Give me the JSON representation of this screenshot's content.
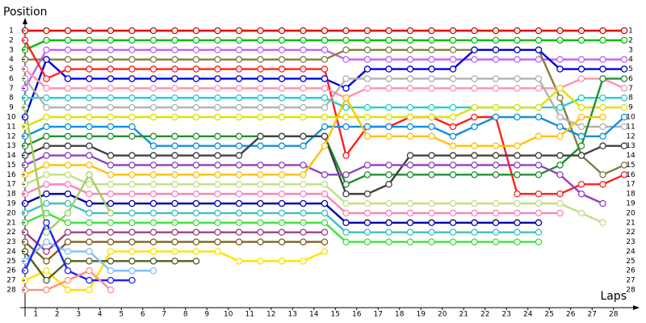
{
  "chart_data": {
    "type": "lap",
    "y_label": "Position",
    "x_label": "Laps",
    "x": [
      0,
      1,
      2,
      3,
      4,
      5,
      6,
      7,
      8,
      9,
      10,
      11,
      12,
      13,
      14,
      15,
      16,
      17,
      18,
      19,
      20,
      21,
      22,
      23,
      24,
      25,
      26,
      27,
      28
    ],
    "xlim": [
      0,
      28.6
    ],
    "xticks": [
      {
        "value": 0.5,
        "label": "1"
      },
      {
        "value": 1.5,
        "label": "2"
      },
      {
        "value": 2.5,
        "label": "3"
      },
      {
        "value": 3.5,
        "label": "4"
      },
      {
        "value": 4.5,
        "label": "5"
      },
      {
        "value": 5.5,
        "label": "6"
      },
      {
        "value": 6.5,
        "label": "7"
      },
      {
        "value": 7.5,
        "label": "8"
      },
      {
        "value": 8.5,
        "label": "9"
      },
      {
        "value": 9.5,
        "label": "10"
      },
      {
        "value": 10.5,
        "label": "11"
      },
      {
        "value": 11.5,
        "label": "12"
      },
      {
        "value": 12.5,
        "label": "13"
      },
      {
        "value": 13.5,
        "label": "14"
      },
      {
        "value": 14.5,
        "label": "15"
      },
      {
        "value": 15.5,
        "label": "16"
      },
      {
        "value": 16.5,
        "label": "17"
      },
      {
        "value": 17.5,
        "label": "18"
      },
      {
        "value": 18.5,
        "label": "19"
      },
      {
        "value": 19.5,
        "label": "20"
      },
      {
        "value": 20.5,
        "label": "21"
      },
      {
        "value": 21.5,
        "label": "22"
      },
      {
        "value": 22.5,
        "label": "23"
      },
      {
        "value": 23.5,
        "label": "24"
      },
      {
        "value": 24.5,
        "label": "25"
      },
      {
        "value": 25.5,
        "label": "26"
      },
      {
        "value": 26.5,
        "label": "27"
      },
      {
        "value": 27.5,
        "label": "28"
      }
    ],
    "ylim": [
      30,
      0
    ],
    "yticks": [
      1,
      2,
      3,
      4,
      5,
      6,
      7,
      8,
      9,
      10,
      11,
      12,
      13,
      14,
      15,
      16,
      17,
      18,
      19,
      20,
      21,
      22,
      23,
      24,
      25,
      26,
      27,
      28
    ],
    "series": [
      {
        "color": "#e00000",
        "values": [
          1,
          1,
          1,
          1,
          1,
          1,
          1,
          1,
          1,
          1,
          1,
          1,
          1,
          1,
          1,
          1,
          1,
          1,
          1,
          1,
          1,
          1,
          1,
          1,
          1,
          1,
          1,
          1,
          1
        ]
      },
      {
        "color": "#00c000",
        "values": [
          3,
          2,
          2,
          2,
          2,
          2,
          2,
          2,
          2,
          2,
          2,
          2,
          2,
          2,
          2,
          2,
          2,
          2,
          2,
          2,
          2,
          2,
          2,
          2,
          2,
          2,
          2,
          2,
          2
        ]
      },
      {
        "color": "#c060ff",
        "values": [
          7,
          3,
          3,
          3,
          3,
          3,
          3,
          3,
          3,
          3,
          3,
          3,
          3,
          3,
          3,
          4,
          4,
          4,
          4,
          4,
          4,
          4,
          4,
          4,
          4,
          4,
          4,
          4,
          4
        ]
      },
      {
        "color": "#808040",
        "values": [
          4,
          4,
          4,
          4,
          4,
          4,
          4,
          4,
          4,
          4,
          4,
          4,
          4,
          4,
          4,
          3,
          3,
          3,
          3,
          3,
          3,
          3,
          3,
          3,
          3,
          8,
          14,
          16,
          15
        ]
      },
      {
        "color": "#0000e0",
        "values": [
          10,
          4,
          6,
          6,
          6,
          6,
          6,
          6,
          6,
          6,
          6,
          6,
          6,
          6,
          6,
          7,
          5,
          5,
          5,
          5,
          5,
          3,
          3,
          3,
          3,
          5,
          5,
          5,
          5
        ]
      },
      {
        "color": "#ff2020",
        "values": [
          2,
          6,
          5,
          5,
          5,
          5,
          5,
          5,
          5,
          5,
          5,
          5,
          5,
          5,
          5,
          14,
          11,
          11,
          10,
          10,
          11,
          10,
          10,
          18,
          18,
          18,
          17,
          17,
          16
        ]
      },
      {
        "color": "#ff90b0",
        "values": [
          5,
          7,
          7,
          7,
          7,
          7,
          7,
          7,
          7,
          7,
          7,
          7,
          7,
          7,
          7,
          8,
          7,
          7,
          7,
          7,
          7,
          7,
          7,
          7,
          7,
          7,
          6,
          6,
          7
        ]
      },
      {
        "color": "#20d0d0",
        "values": [
          8,
          8,
          8,
          8,
          8,
          8,
          8,
          8,
          8,
          8,
          8,
          8,
          8,
          8,
          8,
          9,
          9,
          9,
          9,
          9,
          9,
          9,
          9,
          9,
          9,
          9,
          8,
          8,
          8
        ]
      },
      {
        "color": "#b0b0b0",
        "values": [
          6,
          9,
          9,
          9,
          9,
          9,
          9,
          9,
          9,
          9,
          9,
          9,
          9,
          9,
          9,
          6,
          6,
          6,
          6,
          6,
          6,
          6,
          6,
          6,
          6,
          10,
          11,
          11,
          11
        ]
      },
      {
        "color": "#e0e000",
        "values": [
          11,
          10,
          10,
          10,
          10,
          10,
          10,
          10,
          10,
          10,
          10,
          10,
          10,
          10,
          10,
          10,
          10,
          10,
          10,
          10,
          10,
          9,
          9,
          9,
          9,
          7,
          9,
          9,
          9
        ]
      },
      {
        "color": "#1090e0",
        "values": [
          12,
          11,
          11,
          11,
          11,
          11,
          13,
          13,
          13,
          13,
          13,
          13,
          13,
          13,
          11,
          11,
          11,
          11,
          11,
          11,
          12,
          11,
          10,
          10,
          10,
          11,
          12,
          12,
          10
        ]
      },
      {
        "color": "#209030",
        "values": [
          13,
          12,
          12,
          12,
          12,
          12,
          12,
          12,
          12,
          12,
          12,
          12,
          12,
          12,
          12,
          17,
          16,
          16,
          16,
          16,
          16,
          16,
          16,
          16,
          16,
          15,
          13,
          6,
          6
        ]
      },
      {
        "color": "#404040",
        "values": [
          14,
          13,
          13,
          13,
          14,
          14,
          14,
          14,
          14,
          14,
          14,
          12,
          12,
          12,
          12,
          18,
          18,
          17,
          14,
          14,
          14,
          14,
          14,
          14,
          14,
          14,
          14,
          13,
          13
        ]
      },
      {
        "color": "#9040c0",
        "values": [
          15,
          14,
          14,
          14,
          15,
          15,
          15,
          15,
          15,
          15,
          15,
          15,
          15,
          15,
          16,
          16,
          15,
          15,
          15,
          15,
          15,
          15,
          15,
          15,
          15,
          16,
          18,
          19,
          null
        ]
      },
      {
        "color": "#ffc000",
        "values": [
          16,
          15,
          15,
          15,
          16,
          16,
          16,
          16,
          16,
          16,
          16,
          16,
          16,
          16,
          13,
          8,
          12,
          12,
          12,
          12,
          13,
          13,
          13,
          13,
          12,
          12,
          10,
          10,
          null
        ]
      },
      {
        "color": "#c0e080",
        "values": [
          17,
          16,
          16,
          17,
          17,
          17,
          17,
          17,
          17,
          17,
          17,
          17,
          17,
          17,
          17,
          19,
          19,
          19,
          19,
          19,
          19,
          19,
          19,
          19,
          19,
          19,
          20,
          21,
          null
        ]
      },
      {
        "color": "#ff80c0",
        "values": [
          18,
          17,
          17,
          18,
          18,
          18,
          18,
          18,
          18,
          18,
          18,
          18,
          18,
          18,
          18,
          20,
          20,
          20,
          20,
          20,
          20,
          20,
          20,
          20,
          20,
          20,
          null,
          null,
          null
        ]
      },
      {
        "color": "#0000b0",
        "values": [
          19,
          18,
          18,
          19,
          19,
          19,
          19,
          19,
          19,
          19,
          19,
          19,
          19,
          19,
          19,
          21,
          21,
          21,
          21,
          21,
          21,
          21,
          21,
          21,
          21,
          null,
          null,
          null,
          null
        ]
      },
      {
        "color": "#40c0c0",
        "values": [
          20,
          19,
          19,
          20,
          20,
          20,
          20,
          20,
          20,
          20,
          20,
          20,
          20,
          20,
          20,
          22,
          22,
          22,
          22,
          22,
          22,
          22,
          22,
          22,
          22,
          null,
          null,
          null,
          null
        ]
      },
      {
        "color": "#40e040",
        "values": [
          21,
          20,
          21,
          21,
          21,
          21,
          21,
          21,
          21,
          21,
          21,
          21,
          21,
          21,
          21,
          23,
          23,
          23,
          23,
          23,
          23,
          23,
          23,
          23,
          23,
          null,
          null,
          null,
          null
        ]
      },
      {
        "color": "#a04080",
        "values": [
          22,
          24,
          22,
          22,
          22,
          22,
          22,
          22,
          22,
          22,
          22,
          22,
          22,
          22,
          22,
          null,
          null,
          null,
          null,
          null,
          null,
          null,
          null,
          null,
          null,
          null,
          null,
          null,
          null
        ]
      },
      {
        "color": "#ffe000",
        "values": [
          27,
          26,
          28,
          28,
          24,
          24,
          24,
          24,
          24,
          24,
          25,
          25,
          25,
          25,
          24,
          null,
          null,
          null,
          null,
          null,
          null,
          null,
          null,
          null,
          null,
          null,
          null,
          null,
          null
        ]
      },
      {
        "color": "#806020",
        "values": [
          23,
          25,
          23,
          23,
          23,
          23,
          23,
          23,
          23,
          23,
          23,
          23,
          23,
          23,
          23,
          null,
          null,
          null,
          null,
          null,
          null,
          null,
          null,
          null,
          null,
          null,
          null,
          null,
          null
        ]
      },
      {
        "color": "#506020",
        "values": [
          24,
          27,
          25,
          25,
          25,
          25,
          25,
          25,
          25,
          null,
          null,
          null,
          null,
          null,
          null,
          null,
          null,
          null,
          null,
          null,
          null,
          null,
          null,
          null,
          null,
          null,
          null,
          null,
          null
        ]
      },
      {
        "color": "#80c0ff",
        "values": [
          25,
          23,
          24,
          24,
          26,
          26,
          26,
          null,
          null,
          null,
          null,
          null,
          null,
          null,
          null,
          null,
          null,
          null,
          null,
          null,
          null,
          null,
          null,
          null,
          null,
          null,
          null,
          null,
          null
        ]
      },
      {
        "color": "#2020ff",
        "values": [
          26,
          21,
          26,
          27,
          27,
          27,
          null,
          null,
          null,
          null,
          null,
          null,
          null,
          null,
          null,
          null,
          null,
          null,
          null,
          null,
          null,
          null,
          null,
          null,
          null,
          null,
          null,
          null,
          null
        ]
      },
      {
        "color": "#ff9080",
        "values": [
          28,
          28,
          27,
          26,
          28,
          null,
          null,
          null,
          null,
          null,
          null,
          null,
          null,
          null,
          null,
          null,
          null,
          null,
          null,
          null,
          null,
          null,
          null,
          null,
          null,
          null,
          null,
          null,
          null
        ]
      },
      {
        "color": "#a0d060",
        "values": [
          9,
          22,
          20,
          16,
          20,
          null,
          null,
          null,
          null,
          null,
          null,
          null,
          null,
          null,
          null,
          null,
          null,
          null,
          null,
          null,
          null,
          null,
          null,
          null,
          null,
          null,
          null,
          null,
          null
        ]
      }
    ]
  }
}
